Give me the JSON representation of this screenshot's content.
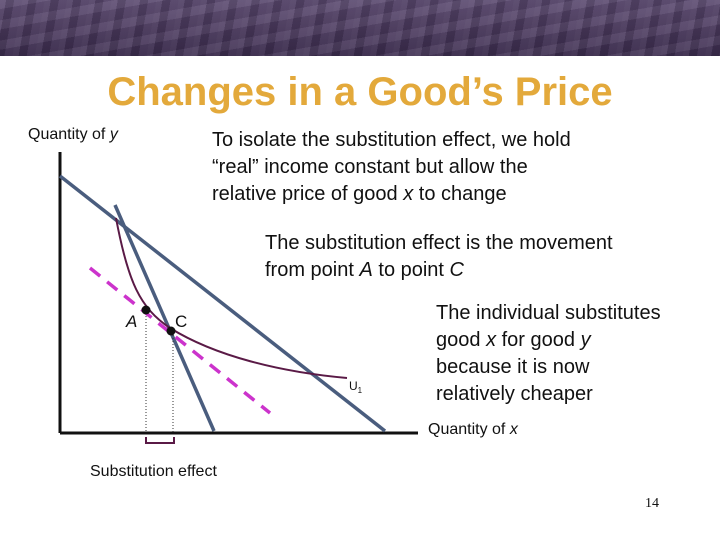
{
  "slide": {
    "title": "Changes in a Good’s Price",
    "page_number": "14"
  },
  "axes": {
    "y_label_text": "Quantity of ",
    "y_label_var": "y",
    "x_label_text": "Quantity of ",
    "x_label_var": "x"
  },
  "notes": {
    "note1": {
      "line1": "To isolate the substitution effect, we hold",
      "line2": "“real” income constant but allow the",
      "line3a": "relative price of good ",
      "line3var": "x",
      "line3b": " to change"
    },
    "note2": {
      "line1": "The substitution effect is the movement",
      "line2a": "from point ",
      "line2varA": "A",
      "line2b": " to point ",
      "line2varC": "C"
    },
    "note3": {
      "line1": "The individual substitutes",
      "line2a": "good ",
      "line2varx": "x",
      "line2b": " for good ",
      "line2vary": "y",
      "line3": "because it is now",
      "line4": "relatively cheaper"
    }
  },
  "diagram": {
    "point_a_label": "A",
    "point_c_label": "C",
    "curve_label": "U",
    "curve_subscript": "1",
    "brace_label": "Substitution effect",
    "colors": {
      "budget_line": "#4a5d7e",
      "indifference_curve": "#5a1a46",
      "compensated_line": "#cc33cc",
      "axis": "#111111",
      "point": "#111111"
    }
  }
}
